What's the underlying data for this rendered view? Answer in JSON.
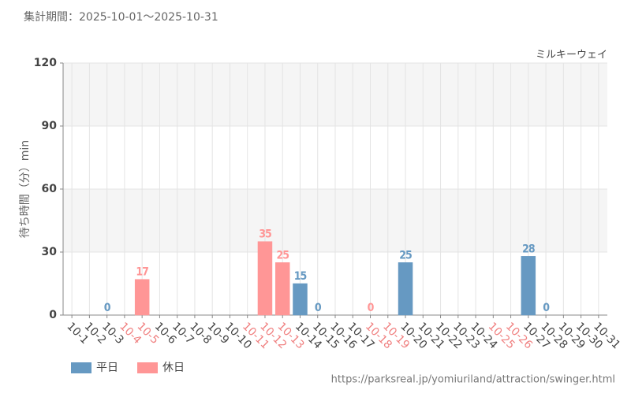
{
  "chart_data": {
    "type": "bar",
    "title": "集計期間：2025-10-01～2025-10-31",
    "subtitle": "ミルキーウェイ",
    "y_label": "待ち時間（分）min",
    "source": "https://parksreal.jp/yomiuriland/attraction/swinger.html",
    "categories": [
      "10-1",
      "10-2",
      "10-3",
      "10-4",
      "10-5",
      "10-6",
      "10-7",
      "10-8",
      "10-9",
      "10-10",
      "10-11",
      "10-12",
      "10-13",
      "10-14",
      "10-15",
      "10-16",
      "10-17",
      "10-18",
      "10-19",
      "10-20",
      "10-21",
      "10-22",
      "10-23",
      "10-24",
      "10-25",
      "10-26",
      "10-27",
      "10-28",
      "10-29",
      "10-30",
      "10-31"
    ],
    "category_colors": [
      "#444",
      "#444",
      "#444",
      "#f08080",
      "#f08080",
      "#444",
      "#444",
      "#444",
      "#444",
      "#444",
      "#f08080",
      "#f08080",
      "#f08080",
      "#444",
      "#444",
      "#444",
      "#444",
      "#f08080",
      "#f08080",
      "#444",
      "#444",
      "#444",
      "#444",
      "#444",
      "#f08080",
      "#f08080",
      "#444",
      "#444",
      "#444",
      "#444",
      "#444"
    ],
    "series": [
      {
        "name": "平日",
        "color": "#6699c2",
        "values": [
          null,
          null,
          0,
          null,
          null,
          null,
          null,
          null,
          null,
          null,
          null,
          null,
          null,
          15,
          0,
          null,
          null,
          null,
          null,
          25,
          null,
          null,
          null,
          null,
          null,
          null,
          28,
          0,
          null,
          null,
          null
        ]
      },
      {
        "name": "休日",
        "color": "#ff9696",
        "values": [
          null,
          null,
          null,
          null,
          17,
          null,
          null,
          null,
          null,
          null,
          null,
          35,
          25,
          null,
          null,
          null,
          null,
          0,
          null,
          null,
          null,
          null,
          null,
          null,
          null,
          null,
          null,
          null,
          null,
          null,
          null
        ]
      }
    ],
    "ylim": [
      0,
      120
    ],
    "yticks": [
      0,
      30,
      60,
      90,
      120
    ],
    "grid": true,
    "legend": "bottom-left"
  }
}
